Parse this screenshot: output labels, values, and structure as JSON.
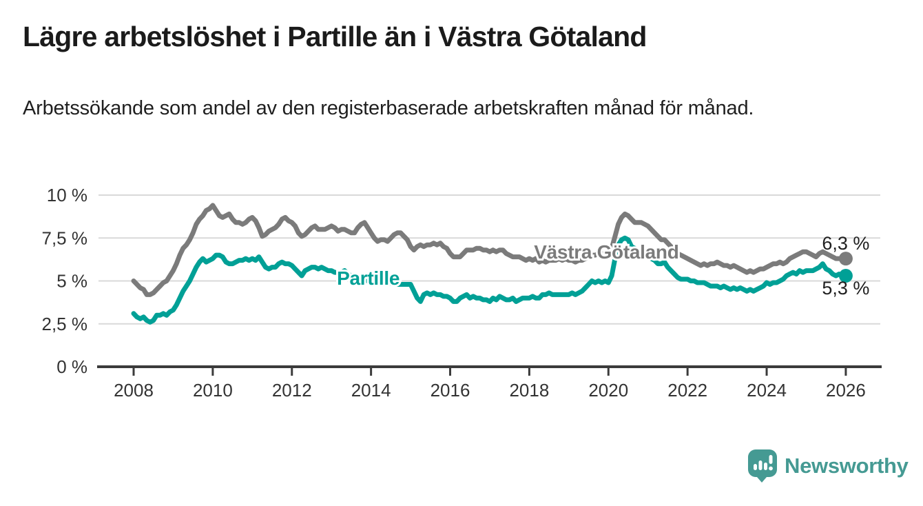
{
  "header": {
    "title": "Lägre arbetslöshet i Partille än i Västra Götaland",
    "subtitle": "Arbetssökande som andel av den registerbaserade arbetskraften månad för månad."
  },
  "chart_data": {
    "type": "line",
    "title": "Lägre arbetslöshet i Partille än i Västra Götaland",
    "subtitle": "Arbetssökande som andel av den registerbaserade arbetskraften månad för månad.",
    "x_unit": "monthly, Jan 2008 – Jan 2026",
    "start_year": 2008,
    "months_per_step": 1,
    "xlim": [
      2007.1,
      2026.9
    ],
    "ylim": [
      0,
      10
    ],
    "grid": "horizontal",
    "legend_position": "inline-labels-on-lines",
    "x_ticks": [
      {
        "year": 2008,
        "label": "2008"
      },
      {
        "year": 2010,
        "label": "2010"
      },
      {
        "year": 2012,
        "label": "2012"
      },
      {
        "year": 2014,
        "label": "2014"
      },
      {
        "year": 2016,
        "label": "2016"
      },
      {
        "year": 2018,
        "label": "2018"
      },
      {
        "year": 2020,
        "label": "2020"
      },
      {
        "year": 2022,
        "label": "2022"
      },
      {
        "year": 2024,
        "label": "2024"
      },
      {
        "year": 2026,
        "label": "2026"
      }
    ],
    "y_ticks": [
      {
        "value": 0,
        "label": "0 %"
      },
      {
        "value": 2.5,
        "label": "2,5 %"
      },
      {
        "value": 5,
        "label": "5 %"
      },
      {
        "value": 7.5,
        "label": "7,5 %"
      },
      {
        "value": 10,
        "label": "10 %"
      }
    ],
    "series": [
      {
        "name": "Västra Götaland",
        "color": "#7b7b7b",
        "end_value": 6.3,
        "end_label": "6,3 %",
        "end_label_side": "above",
        "label_pos": {
          "year": 2019.95,
          "pct": 6.3
        },
        "values_monthly": [
          5.0,
          4.8,
          4.6,
          4.5,
          4.2,
          4.2,
          4.3,
          4.5,
          4.7,
          4.9,
          5.0,
          5.3,
          5.6,
          6.0,
          6.5,
          6.9,
          7.1,
          7.4,
          7.8,
          8.3,
          8.6,
          8.8,
          9.1,
          9.2,
          9.4,
          9.1,
          8.8,
          8.7,
          8.8,
          8.9,
          8.6,
          8.4,
          8.4,
          8.3,
          8.4,
          8.6,
          8.7,
          8.5,
          8.1,
          7.6,
          7.7,
          7.9,
          8.0,
          8.1,
          8.3,
          8.6,
          8.7,
          8.5,
          8.4,
          8.2,
          7.8,
          7.6,
          7.7,
          7.9,
          8.1,
          8.2,
          8.0,
          8.0,
          8.0,
          8.1,
          8.2,
          8.1,
          7.9,
          8.0,
          8.0,
          7.9,
          7.8,
          7.8,
          8.1,
          8.3,
          8.4,
          8.1,
          7.8,
          7.5,
          7.3,
          7.4,
          7.4,
          7.3,
          7.5,
          7.7,
          7.8,
          7.8,
          7.6,
          7.4,
          7.0,
          6.8,
          7.0,
          7.1,
          7.0,
          7.1,
          7.1,
          7.2,
          7.1,
          7.2,
          7.0,
          6.9,
          6.6,
          6.4,
          6.4,
          6.4,
          6.6,
          6.8,
          6.8,
          6.8,
          6.9,
          6.9,
          6.8,
          6.8,
          6.7,
          6.8,
          6.7,
          6.8,
          6.8,
          6.6,
          6.5,
          6.4,
          6.4,
          6.4,
          6.3,
          6.2,
          6.3,
          6.2,
          6.3,
          6.1,
          6.2,
          6.1,
          6.2,
          6.2,
          6.2,
          6.3,
          6.2,
          6.3,
          6.2,
          6.2,
          6.1,
          6.2,
          6.2,
          6.3,
          6.4,
          6.5,
          6.5,
          6.6,
          6.6,
          6.6,
          6.6,
          6.9,
          7.6,
          8.3,
          8.7,
          8.9,
          8.8,
          8.6,
          8.4,
          8.4,
          8.4,
          8.3,
          8.2,
          8.0,
          7.8,
          7.6,
          7.4,
          7.4,
          7.2,
          7.0,
          6.8,
          6.6,
          6.5,
          6.4,
          6.3,
          6.2,
          6.1,
          6.0,
          5.9,
          6.0,
          5.9,
          6.0,
          6.0,
          6.1,
          6.0,
          5.9,
          5.9,
          5.8,
          5.9,
          5.8,
          5.7,
          5.6,
          5.5,
          5.6,
          5.5,
          5.6,
          5.7,
          5.7,
          5.8,
          5.9,
          6.0,
          6.0,
          6.1,
          6.0,
          6.1,
          6.3,
          6.4,
          6.5,
          6.6,
          6.7,
          6.7,
          6.6,
          6.5,
          6.4,
          6.6,
          6.7,
          6.6,
          6.5,
          6.4,
          6.3,
          6.3,
          6.3,
          6.3
        ]
      },
      {
        "name": "Partille",
        "color": "#00a096",
        "end_value": 5.3,
        "end_label": "5,3 %",
        "end_label_side": "below",
        "label_pos": {
          "year": 2013.93,
          "pct": 4.78
        },
        "values_monthly": [
          3.1,
          2.9,
          2.8,
          2.9,
          2.7,
          2.6,
          2.7,
          3.0,
          3.0,
          3.1,
          3.0,
          3.2,
          3.3,
          3.6,
          4.0,
          4.4,
          4.7,
          5.0,
          5.4,
          5.8,
          6.1,
          6.3,
          6.1,
          6.2,
          6.3,
          6.5,
          6.5,
          6.4,
          6.1,
          6.0,
          6.0,
          6.1,
          6.2,
          6.2,
          6.3,
          6.2,
          6.3,
          6.2,
          6.4,
          6.1,
          5.8,
          5.7,
          5.8,
          5.8,
          6.0,
          6.1,
          6.0,
          6.0,
          5.9,
          5.7,
          5.5,
          5.3,
          5.6,
          5.7,
          5.8,
          5.8,
          5.7,
          5.8,
          5.7,
          5.6,
          5.6,
          5.5,
          5.5,
          5.5,
          5.6,
          5.4,
          5.3,
          5.3,
          5.2,
          5.2,
          5.1,
          5.0,
          5.0,
          4.9,
          4.9,
          4.9,
          4.9,
          4.8,
          4.9,
          4.8,
          4.8,
          4.8,
          4.8,
          4.8,
          4.8,
          4.4,
          4.0,
          3.8,
          4.2,
          4.3,
          4.2,
          4.3,
          4.2,
          4.2,
          4.1,
          4.1,
          4.0,
          3.8,
          3.8,
          4.0,
          4.1,
          4.2,
          4.0,
          4.1,
          4.0,
          4.0,
          3.9,
          3.9,
          3.8,
          4.0,
          3.9,
          4.1,
          4.0,
          3.9,
          3.9,
          4.0,
          3.8,
          3.9,
          4.0,
          4.0,
          4.0,
          4.1,
          4.0,
          4.0,
          4.2,
          4.2,
          4.3,
          4.2,
          4.2,
          4.2,
          4.2,
          4.2,
          4.2,
          4.3,
          4.2,
          4.3,
          4.4,
          4.6,
          4.8,
          5.0,
          4.9,
          5.0,
          4.9,
          5.0,
          4.9,
          5.3,
          6.3,
          7.1,
          7.4,
          7.5,
          7.4,
          7.0,
          6.9,
          6.7,
          6.6,
          6.5,
          6.4,
          6.3,
          6.2,
          6.0,
          6.0,
          6.1,
          5.8,
          5.6,
          5.4,
          5.2,
          5.1,
          5.1,
          5.1,
          5.0,
          5.0,
          4.9,
          4.9,
          4.9,
          4.8,
          4.7,
          4.7,
          4.7,
          4.6,
          4.7,
          4.6,
          4.5,
          4.6,
          4.5,
          4.6,
          4.5,
          4.4,
          4.5,
          4.4,
          4.5,
          4.6,
          4.7,
          4.9,
          4.8,
          4.9,
          4.9,
          5.0,
          5.1,
          5.3,
          5.4,
          5.5,
          5.4,
          5.6,
          5.5,
          5.6,
          5.6,
          5.6,
          5.7,
          5.8,
          6.0,
          5.7,
          5.6,
          5.4,
          5.3,
          5.4,
          5.3,
          5.3
        ]
      }
    ],
    "colors": {
      "grid": "#d9d9d9",
      "axis": "#3b3b3b",
      "tick_text": "#333333",
      "value_label_text": "#1f1f1f"
    }
  },
  "footer": {
    "logo_text": "Newsworthy",
    "logo_color": "#459a93"
  }
}
